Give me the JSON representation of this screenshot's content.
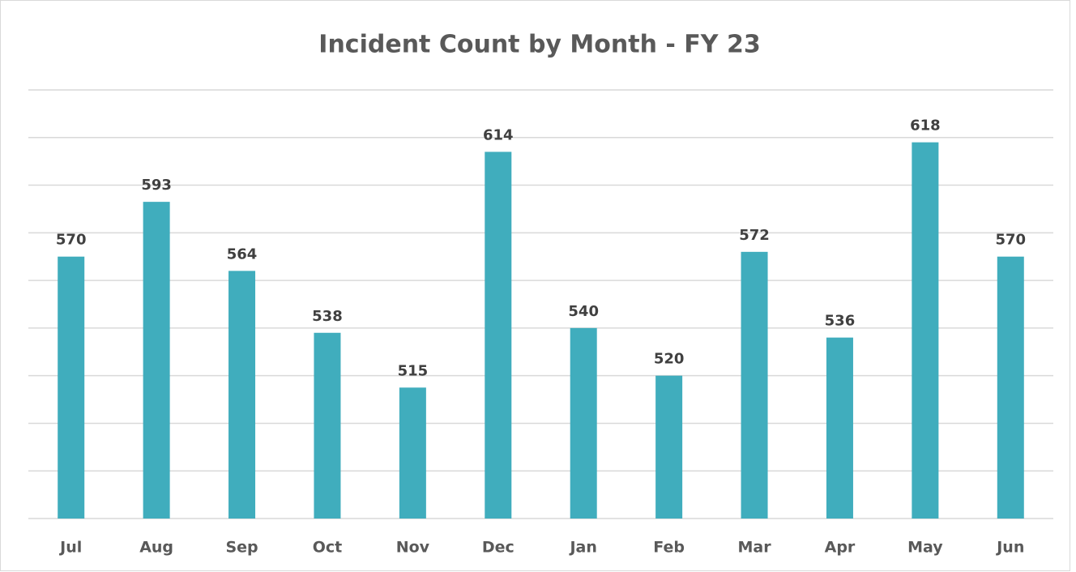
{
  "chart_data": {
    "type": "bar",
    "title": "Incident Count by Month - FY 23",
    "categories": [
      "Jul",
      "Aug",
      "Sep",
      "Oct",
      "Nov",
      "Dec",
      "Jan",
      "Feb",
      "Mar",
      "Apr",
      "May",
      "Jun"
    ],
    "values": [
      570,
      593,
      564,
      538,
      515,
      614,
      540,
      520,
      572,
      536,
      618,
      570
    ],
    "color": "#40adbd",
    "ylim": [
      460,
      640
    ],
    "yticks": [
      460,
      480,
      500,
      520,
      540,
      560,
      580,
      600,
      620,
      640
    ],
    "grid": true
  }
}
